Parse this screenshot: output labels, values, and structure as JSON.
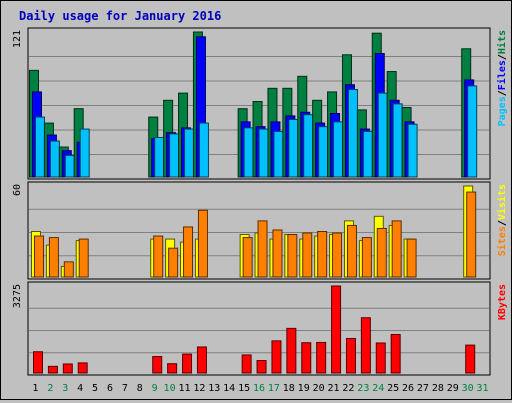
{
  "chart_data": {
    "type": "bar",
    "title": "Daily usage for January 2016",
    "x": [
      "1",
      "2",
      "3",
      "4",
      "5",
      "6",
      "7",
      "8",
      "9",
      "10",
      "11",
      "12",
      "13",
      "14",
      "15",
      "16",
      "17",
      "18",
      "19",
      "20",
      "21",
      "22",
      "23",
      "24",
      "25",
      "26",
      "27",
      "28",
      "29",
      "30",
      "31"
    ],
    "weekend_days": [
      "2",
      "3",
      "9",
      "10",
      "16",
      "17",
      "23",
      "24",
      "30",
      "31"
    ],
    "panels": [
      {
        "name": "hits-files-pages",
        "ymax_label": "121",
        "ymax": 121,
        "ylabel_parts": [
          "Pages",
          "Files",
          "Hits"
        ],
        "series": [
          {
            "name": "Hits",
            "color": "#008040",
            "values": [
              89,
              45,
              25,
              57,
              0,
              0,
              0,
              0,
              50,
              64,
              70,
              121,
              0,
              0,
              57,
              63,
              74,
              74,
              84,
              64,
              71,
              102,
              56,
              120,
              88,
              58,
              0,
              0,
              0,
              107,
              0
            ]
          },
          {
            "name": "Files",
            "color": "#0000ff",
            "values": [
              71,
              35,
              22,
              29,
              0,
              0,
              0,
              0,
              32,
              37,
              41,
              117,
              0,
              0,
              46,
              42,
              46,
              51,
              54,
              45,
              53,
              77,
              40,
              103,
              64,
              46,
              0,
              0,
              0,
              81,
              0
            ]
          },
          {
            "name": "Pages",
            "color": "#00c0ff",
            "values": [
              50,
              30,
              18,
              40,
              0,
              0,
              0,
              0,
              33,
              36,
              40,
              45,
              0,
              0,
              41,
              40,
              38,
              48,
              52,
              42,
              46,
              73,
              38,
              70,
              61,
              44,
              0,
              0,
              0,
              76,
              0
            ]
          }
        ]
      },
      {
        "name": "visits-sites",
        "ymax_label": "60",
        "ymax": 60,
        "ylabel_parts": [
          "Sites",
          "Visits"
        ],
        "series": [
          {
            "name": "Visits",
            "color": "#ffff00",
            "values": [
              30,
              21,
              7,
              24,
              0,
              0,
              0,
              0,
              25,
              25,
              23,
              25,
              0,
              0,
              28,
              29,
              25,
              28,
              25,
              27,
              28,
              37,
              24,
              40,
              34,
              25,
              0,
              0,
              0,
              60,
              0
            ]
          },
          {
            "name": "Sites",
            "color": "#ff8000",
            "values": [
              27,
              26,
              10,
              25,
              0,
              0,
              0,
              0,
              27,
              19,
              33,
              44,
              0,
              0,
              26,
              37,
              31,
              28,
              29,
              30,
              29,
              34,
              26,
              32,
              37,
              25,
              0,
              0,
              0,
              56,
              0
            ]
          }
        ]
      },
      {
        "name": "kbytes",
        "ymax_label": "3275",
        "ymax": 3275,
        "ylabel_parts": [
          "KBytes"
        ],
        "series": [
          {
            "name": "KBytes",
            "color": "#ff0000",
            "values": [
              800,
              250,
              340,
              380,
              0,
              0,
              0,
              0,
              620,
              350,
              710,
              980,
              0,
              0,
              680,
              470,
              1210,
              1680,
              1140,
              1150,
              3275,
              1300,
              2080,
              1130,
              1450,
              0,
              0,
              0,
              0,
              1050,
              0
            ]
          }
        ]
      }
    ]
  }
}
